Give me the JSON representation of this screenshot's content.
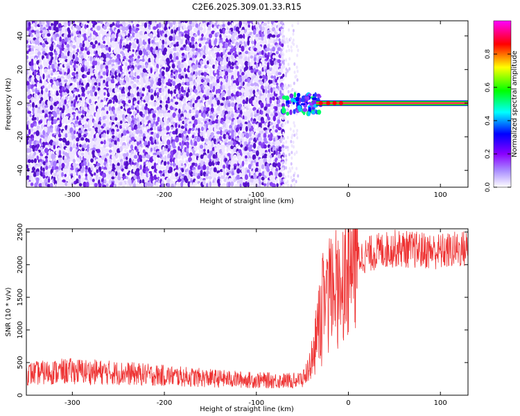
{
  "title": "C2E6.2025.309.01.33.R15",
  "colors": {
    "snr_line": "#ee3333",
    "spec_dots": "#6a1fe0",
    "axis": "#000000"
  },
  "chart_data": [
    {
      "type": "heatmap",
      "title": "C2E6.2025.309.01.33.R15",
      "xlabel": "Height of straight line (km)",
      "ylabel": "Frequency (Hz)",
      "xlim": [
        -350,
        130
      ],
      "ylim": [
        -50,
        49
      ],
      "xticks": [
        -300,
        -200,
        -100,
        0,
        100
      ],
      "xtick_labels": [
        "-300",
        "-200",
        "-100",
        "0",
        "100"
      ],
      "yticks": [
        -40,
        -20,
        0,
        20,
        40
      ],
      "ytick_labels": [
        "-40",
        "-20",
        "0",
        "20",
        "40"
      ],
      "colorbar": {
        "label": "Normalized spectral amplitude",
        "range": [
          0,
          1
        ],
        "ticks": [
          0.0,
          0.2,
          0.4,
          0.6,
          0.8
        ],
        "tick_labels": [
          "0.0",
          "0.2",
          "0.4",
          "0.6",
          "0.8"
        ],
        "stops": [
          "#ffffff",
          "#8a00ff",
          "#0000ff",
          "#00ffff",
          "#00ff00",
          "#ffff00",
          "#ff0000",
          "#ff00ff"
        ]
      },
      "regions": [
        {
          "name": "noise",
          "x_range": [
            -350,
            -72
          ],
          "freq_range": [
            -50,
            49
          ],
          "amplitude": 0.15
        },
        {
          "name": "sparse noise",
          "x_range": [
            -72,
            -55
          ],
          "freq_range": [
            -50,
            49
          ],
          "amplitude": 0.05
        },
        {
          "name": "transition",
          "x_range": [
            -72,
            -30
          ],
          "freq_range": [
            -15,
            5
          ],
          "amplitude": 0.5
        },
        {
          "name": "DC line",
          "x_range": [
            -40,
            130
          ],
          "freq_range": [
            -0.6,
            0.6
          ],
          "amplitude": 0.95
        }
      ]
    },
    {
      "type": "line",
      "xlabel": "Height of straight line (km)",
      "ylabel": "SNR (10 * v/v)",
      "xlim": [
        -350,
        130
      ],
      "ylim": [
        0,
        2550
      ],
      "xticks": [
        -300,
        -200,
        -100,
        0,
        100
      ],
      "xtick_labels": [
        "-300",
        "-200",
        "-100",
        "0",
        "100"
      ],
      "yticks": [
        0,
        500,
        1000,
        1500,
        2000,
        2500
      ],
      "ytick_labels": [
        "0",
        "500",
        "1000",
        "1500",
        "2000",
        "2500"
      ],
      "series": [
        {
          "name": "SNR",
          "x": [
            -350,
            -300,
            -250,
            -200,
            -150,
            -100,
            -60,
            -50,
            -45,
            -40,
            -35,
            -30,
            -25,
            -20,
            -15,
            -10,
            -5,
            0,
            10,
            20,
            30,
            50,
            100,
            130
          ],
          "values": [
            330,
            370,
            340,
            300,
            260,
            230,
            220,
            250,
            350,
            550,
            900,
            1300,
            1550,
            1600,
            1650,
            1750,
            1850,
            1950,
            2100,
            2150,
            2200,
            2250,
            2200,
            2250
          ]
        }
      ]
    }
  ]
}
